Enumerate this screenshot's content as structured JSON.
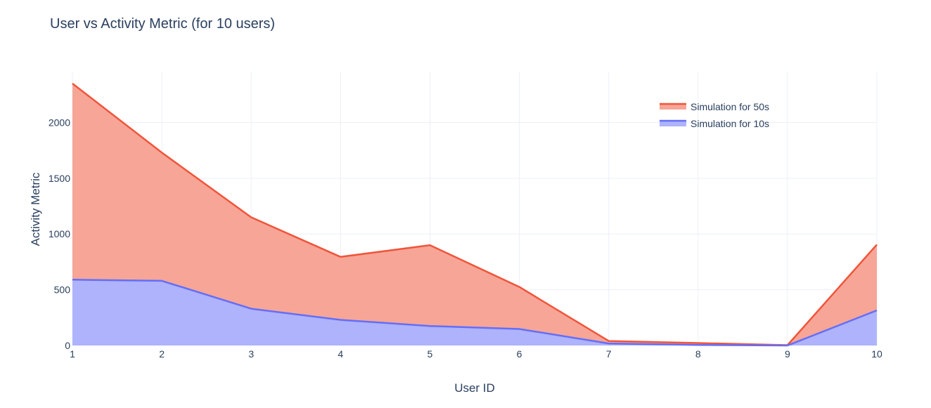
{
  "chart_data": {
    "type": "area",
    "title": "User vs Activity Metric (for 10 users)",
    "xlabel": "User ID",
    "ylabel": "Activity Metric",
    "x": [
      1,
      2,
      3,
      4,
      5,
      6,
      7,
      8,
      9,
      10
    ],
    "xlim": [
      1,
      10
    ],
    "ylim": [
      0,
      2450
    ],
    "y_ticks": [
      0,
      500,
      1000,
      1500,
      2000
    ],
    "grid": true,
    "legend_position": "top-right",
    "series": [
      {
        "name": "Simulation for 50s",
        "color": "#ef553b",
        "fill": "#f7a597",
        "values": [
          2350,
          1730,
          1150,
          795,
          900,
          525,
          40,
          22,
          3,
          905
        ]
      },
      {
        "name": "Simulation for 10s",
        "color": "#636efa",
        "fill": "#aeb3fb",
        "values": [
          590,
          580,
          330,
          230,
          175,
          148,
          18,
          5,
          0,
          315
        ]
      }
    ]
  }
}
